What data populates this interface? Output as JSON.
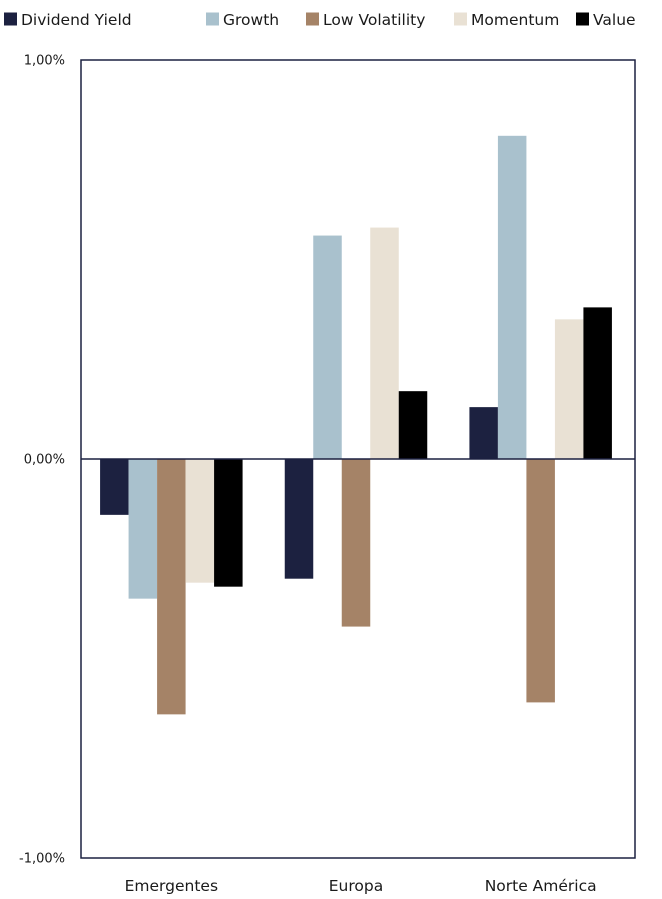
{
  "chart_data": {
    "type": "bar",
    "title": "",
    "xlabel": "",
    "ylabel": "",
    "categories": [
      "Emergentes",
      "Europa",
      "Norte América"
    ],
    "series": [
      {
        "name": "Dividend Yield",
        "color": "#1c2140",
        "values": [
          -0.14,
          -0.3,
          0.13
        ]
      },
      {
        "name": "Growth",
        "color": "#a9c1cd",
        "values": [
          -0.35,
          0.56,
          0.81
        ]
      },
      {
        "name": "Low Volatility",
        "color": "#a58367",
        "values": [
          -0.64,
          -0.42,
          -0.61
        ]
      },
      {
        "name": "Momentum",
        "color": "#e9e1d4",
        "values": [
          -0.31,
          0.58,
          0.35
        ]
      },
      {
        "name": "Value",
        "color": "#000000",
        "values": [
          -0.32,
          0.17,
          0.38
        ]
      }
    ],
    "ylim": [
      -1.0,
      1.0
    ],
    "y_ticks": [
      1.0,
      0.0,
      -1.0
    ],
    "y_tick_labels": [
      "1,00%",
      "0,00%",
      "-1,00%"
    ],
    "grid": false,
    "legend_position": "top"
  }
}
